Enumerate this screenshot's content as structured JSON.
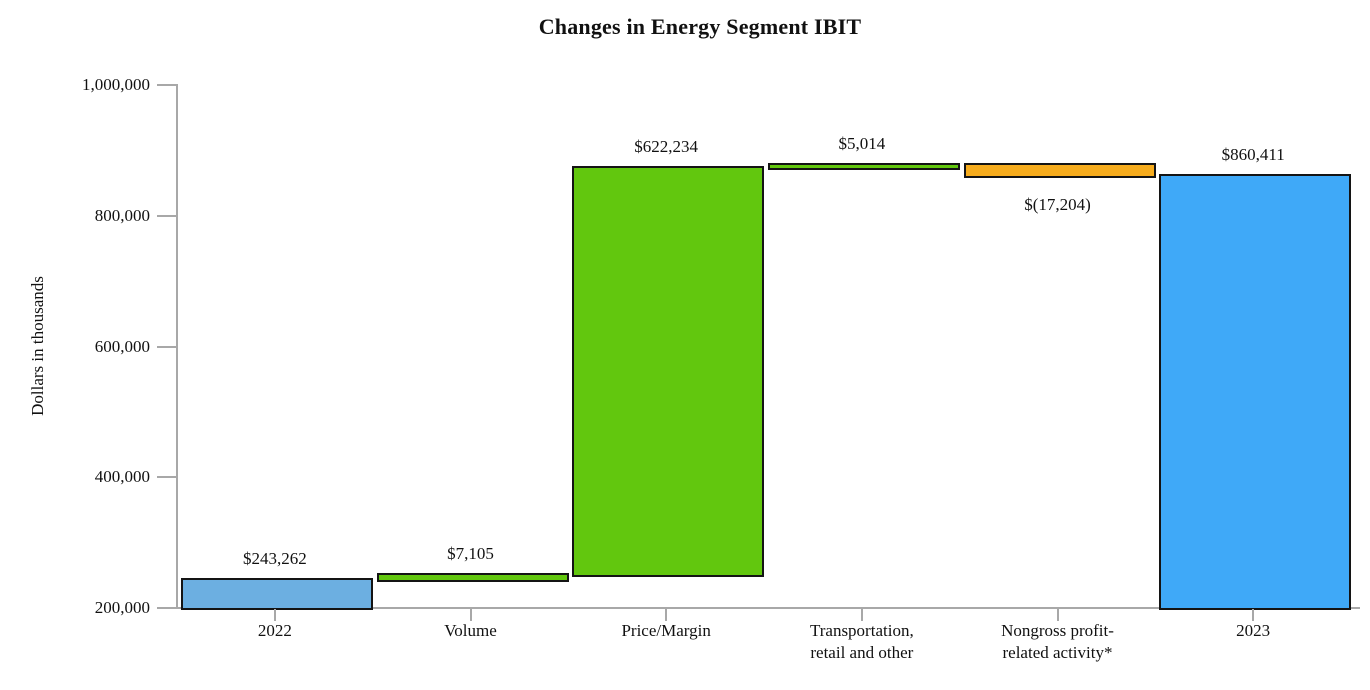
{
  "title": "Changes in Energy Segment IBIT",
  "y_axis_title": "Dollars in thousands",
  "colors": {
    "axis": "#a8a8a8",
    "bar_border": "#141414",
    "text": "#111111",
    "blue_start": "#6cafe1",
    "green_increase": "#62c70e",
    "orange_decrease": "#f6ac1d",
    "blue_end": "#3fa9f8"
  },
  "chart_data": {
    "type": "bar",
    "subtype": "waterfall",
    "title": "Changes in Energy Segment IBIT",
    "xlabel": "",
    "ylabel": "Dollars in thousands",
    "ylim": [
      200000,
      1000000
    ],
    "grid": false,
    "legend_position": "none",
    "yticks": [
      {
        "value": 200000,
        "label": "200,000"
      },
      {
        "value": 400000,
        "label": "400,000"
      },
      {
        "value": 600000,
        "label": "600,000"
      },
      {
        "value": 800000,
        "label": "800,000"
      },
      {
        "value": 1000000,
        "label": "1,000,000"
      }
    ],
    "bars": [
      {
        "category": "2022",
        "category_lines": [
          "2022"
        ],
        "kind": "total",
        "value": 243262,
        "data_label": "$243,262",
        "label_position": "above",
        "color": "#6cafe1"
      },
      {
        "category": "Volume",
        "category_lines": [
          "Volume"
        ],
        "kind": "delta",
        "value": 7105,
        "data_label": "$7,105",
        "label_position": "above",
        "color": "#62c70e"
      },
      {
        "category": "Price/Margin",
        "category_lines": [
          "Price/Margin"
        ],
        "kind": "delta",
        "value": 622234,
        "data_label": "$622,234",
        "label_position": "above",
        "color": "#62c70e"
      },
      {
        "category": "Transportation, retail and other",
        "category_lines": [
          "Transportation,",
          "retail and other"
        ],
        "kind": "delta",
        "value": 5014,
        "data_label": "$5,014",
        "label_position": "above",
        "color": "#62c70e"
      },
      {
        "category": "Nongross profit-related activity*",
        "category_lines": [
          "Nongross profit-",
          "related activity*"
        ],
        "kind": "delta",
        "value": -17204,
        "data_label": "$(17,204)",
        "label_position": "below",
        "color": "#f6ac1d"
      },
      {
        "category": "2023",
        "category_lines": [
          "2023"
        ],
        "kind": "total",
        "value": 860411,
        "data_label": "$860,411",
        "label_position": "above",
        "color": "#3fa9f8"
      }
    ]
  }
}
